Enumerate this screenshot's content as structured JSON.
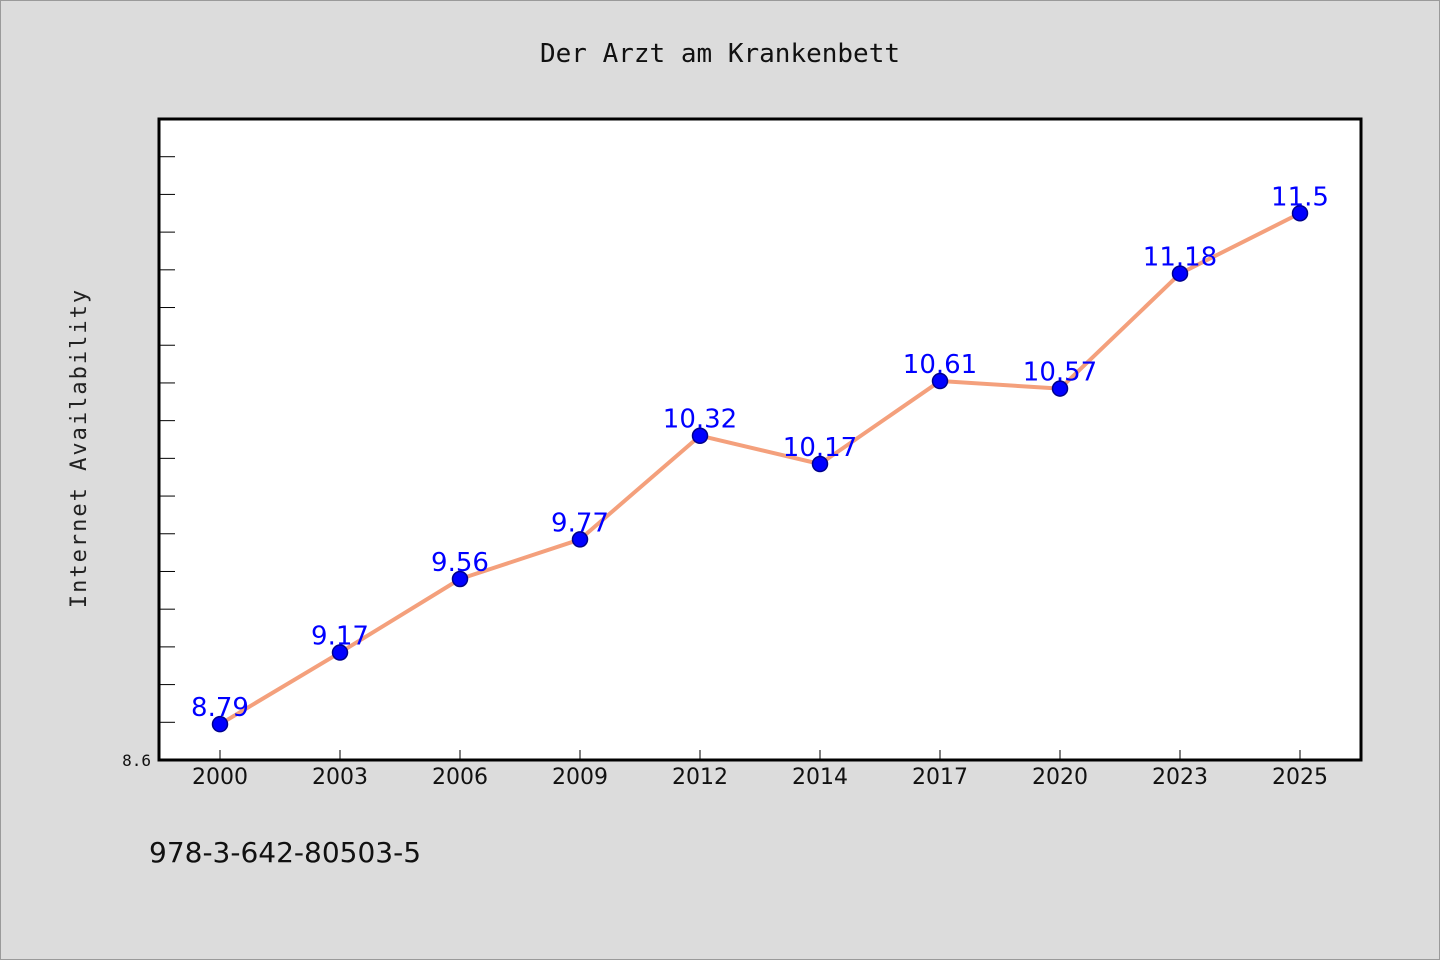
{
  "chart_data": {
    "type": "line",
    "title": "Der Arzt am Krankenbett",
    "xlabel": "",
    "ylabel": "Internet Availability",
    "categories": [
      "2000",
      "2003",
      "2006",
      "2009",
      "2012",
      "2014",
      "2017",
      "2020",
      "2023",
      "2025"
    ],
    "series": [
      {
        "values": [
          8.79,
          9.17,
          9.56,
          9.77,
          10.32,
          10.17,
          10.61,
          10.57,
          11.18,
          11.5
        ]
      }
    ],
    "data_labels": [
      "8.79",
      "9.17",
      "9.56",
      "9.77",
      "10.32",
      "10.17",
      "10.61",
      "10.57",
      "11.18",
      "11.5"
    ],
    "y_tick_labels": [
      "8.6"
    ],
    "ylim": [
      8.6,
      12.0
    ],
    "grid": false,
    "colors": {
      "line": "#f4a07c",
      "marker": "#0000ff",
      "marker_edge": "#00008b",
      "data_label": "#0000ff",
      "background": "#dcdcdc",
      "plot_background": "#ffffff"
    }
  },
  "footer": {
    "text": "978-3-642-80503-5"
  }
}
